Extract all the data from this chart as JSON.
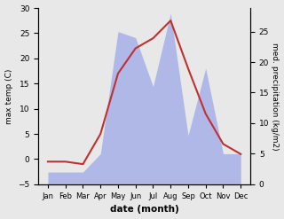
{
  "months": [
    "Jan",
    "Feb",
    "Mar",
    "Apr",
    "May",
    "Jun",
    "Jul",
    "Aug",
    "Sep",
    "Oct",
    "Nov",
    "Dec"
  ],
  "temp": [
    -0.5,
    -0.5,
    -1.0,
    5.0,
    17.0,
    22.0,
    24.0,
    27.5,
    18.0,
    9.0,
    3.0,
    1.0
  ],
  "precip": [
    2.0,
    2.0,
    2.0,
    5.0,
    25.0,
    24.0,
    16.0,
    28.0,
    8.0,
    19.0,
    5.0,
    5.0
  ],
  "temp_ylim": [
    -5,
    30
  ],
  "precip_ylim": [
    0,
    28.85
  ],
  "precip_right_ticks": [
    0,
    5,
    10,
    15,
    20,
    25
  ],
  "temp_color": "#c03030",
  "precip_fill_color": "#b0b8e8",
  "xlabel": "date (month)",
  "ylabel_left": "max temp (C)",
  "ylabel_right": "med. precipitation (kg/m2)",
  "yticks_left": [
    -5,
    0,
    5,
    10,
    15,
    20,
    25,
    30
  ],
  "background_color": "#e8e8e8"
}
